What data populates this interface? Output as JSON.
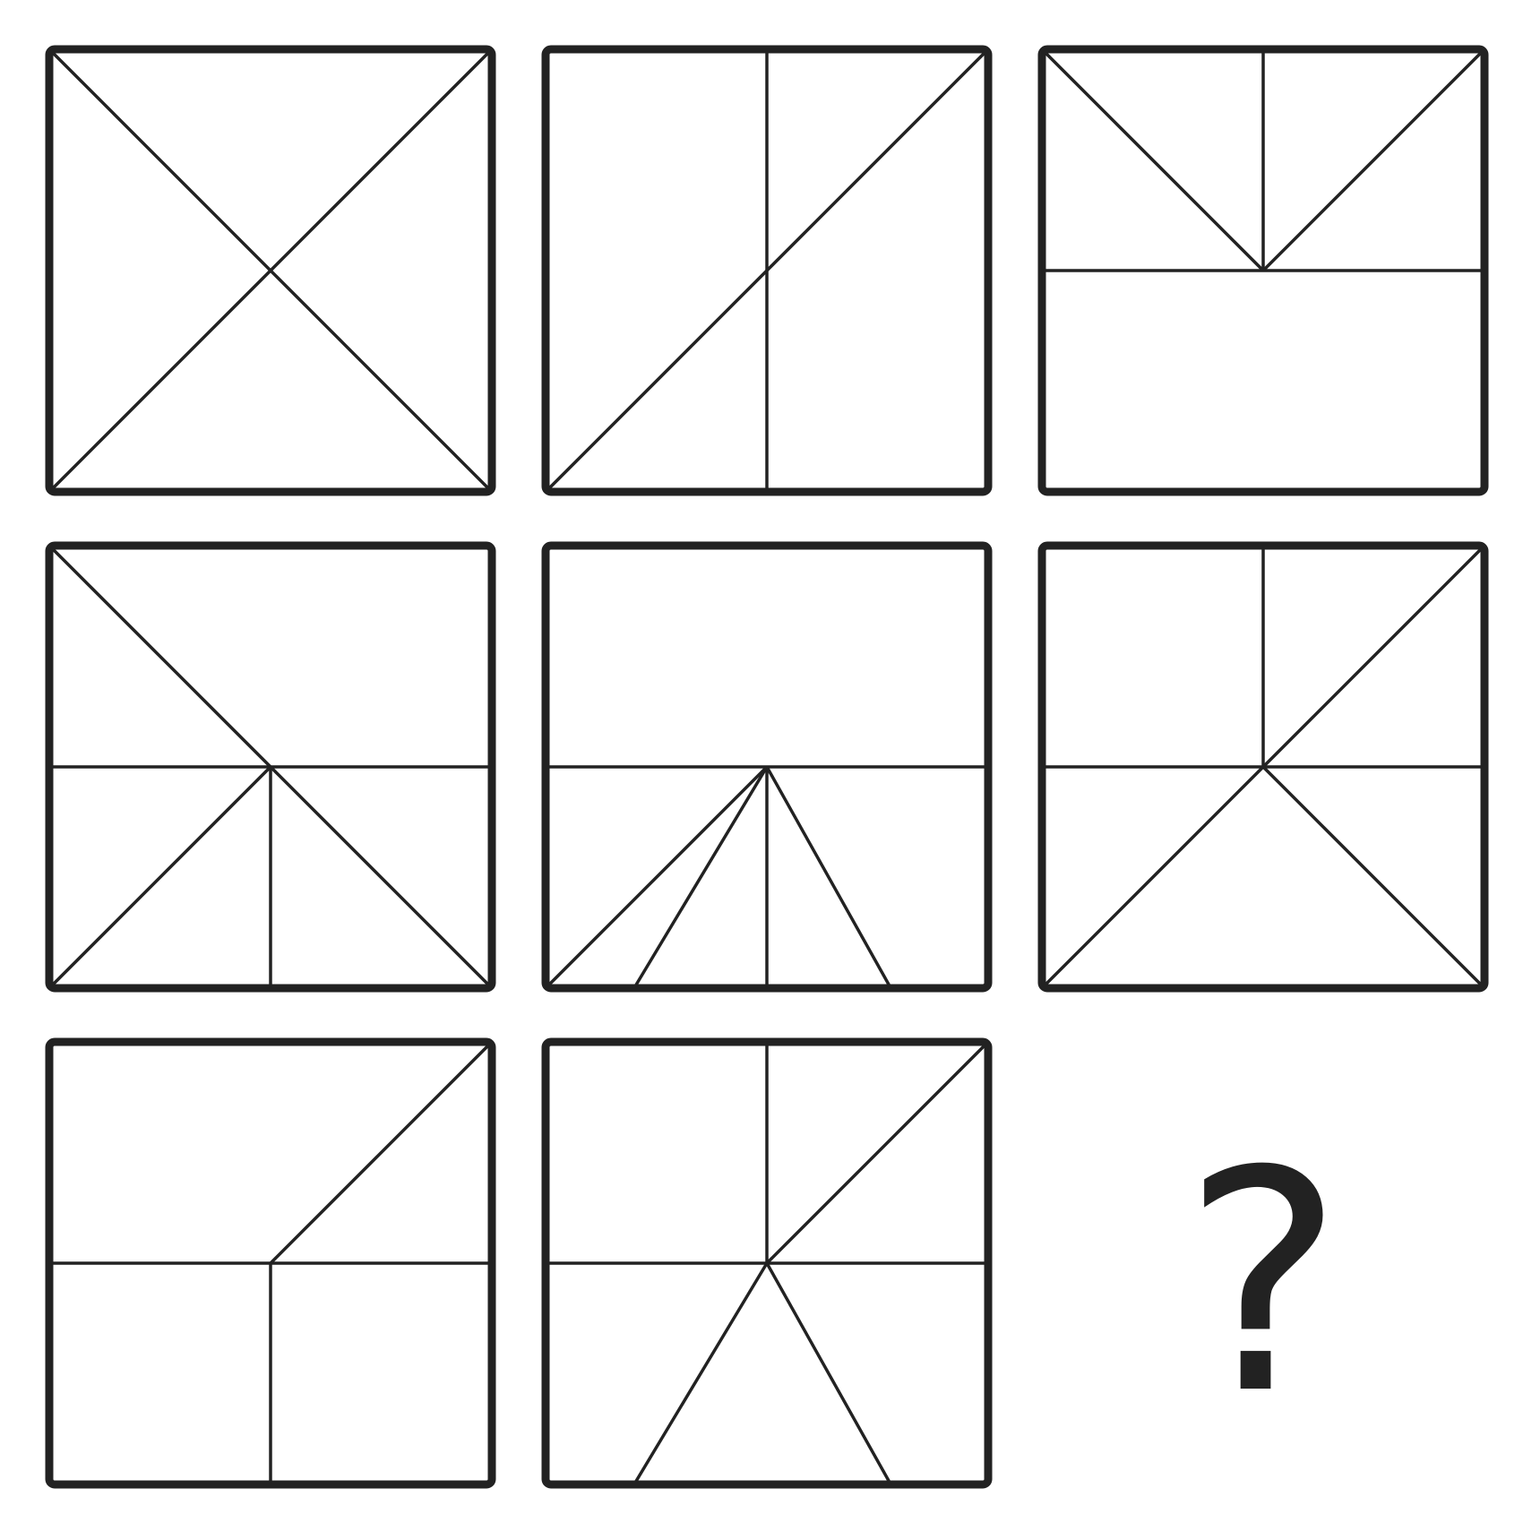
{
  "puzzle": {
    "colors": {
      "line": "#222222",
      "background": "#ffffff"
    },
    "cells": [
      {
        "id": "r1c1",
        "lines": [
          "diag-main",
          "diag-anti"
        ]
      },
      {
        "id": "r1c2",
        "lines": [
          "vertical",
          "diag-anti"
        ]
      },
      {
        "id": "r1c3",
        "lines": [
          "horizontal",
          "half-vertical-top",
          "half-diag-tl",
          "half-diag-tr"
        ]
      },
      {
        "id": "r2c1",
        "lines": [
          "horizontal",
          "half-vertical-bottom",
          "diag-main",
          "half-diag-bl"
        ]
      },
      {
        "id": "r2c2",
        "lines": [
          "horizontal",
          "half-vertical-bottom",
          "half-diag-bl",
          "fan-left",
          "fan-right"
        ]
      },
      {
        "id": "r2c3",
        "lines": [
          "horizontal",
          "half-vertical-top",
          "diag-anti",
          "half-diag-br"
        ]
      },
      {
        "id": "r3c1",
        "lines": [
          "horizontal",
          "half-vertical-bottom",
          "half-diag-tr"
        ]
      },
      {
        "id": "r3c2",
        "lines": [
          "horizontal",
          "half-vertical-top",
          "half-diag-tr",
          "fan-left",
          "fan-right"
        ]
      }
    ],
    "missing": {
      "id": "r3c3",
      "symbol": "?"
    }
  }
}
